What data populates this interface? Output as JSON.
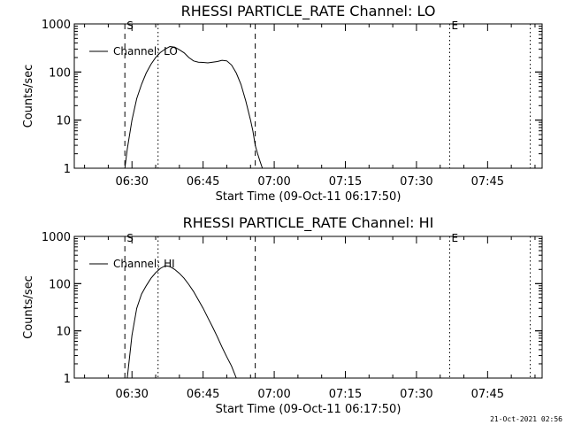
{
  "footer": {
    "timestamp": "21-Oct-2021 02:56"
  },
  "chart_data": [
    {
      "type": "line",
      "title": "RHESSI PARTICLE_RATE Channel: LO",
      "xlabel": "Start Time (09-Oct-11 06:17:50)",
      "ylabel": "Counts/sec",
      "y_scale": "log",
      "ylim": [
        1,
        1000
      ],
      "xlim": [
        "06:17:50",
        "07:56:30"
      ],
      "x_ticks": [
        "06:30",
        "06:45",
        "07:00",
        "07:15",
        "07:30",
        "07:45"
      ],
      "y_ticks": [
        "1",
        "10",
        "100",
        "1000"
      ],
      "legend": {
        "position": "top-left",
        "entries": [
          "Channel: LO"
        ]
      },
      "vlines": [
        {
          "x": "06:28:30",
          "style": "dashed",
          "label": "S"
        },
        {
          "x": "06:35:30",
          "style": "dotted",
          "label": ""
        },
        {
          "x": "06:56:00",
          "style": "dashed",
          "label": ""
        },
        {
          "x": "07:37:00",
          "style": "dotted",
          "label": "E"
        },
        {
          "x": "07:54:00",
          "style": "dotted",
          "label": ""
        }
      ],
      "series": [
        {
          "name": "Channel: LO",
          "x": [
            "06:28:30",
            "06:29:00",
            "06:30:00",
            "06:31:00",
            "06:32:00",
            "06:33:00",
            "06:34:00",
            "06:35:00",
            "06:36:00",
            "06:37:00",
            "06:38:00",
            "06:39:00",
            "06:40:00",
            "06:41:00",
            "06:42:00",
            "06:43:00",
            "06:44:00",
            "06:45:00",
            "06:46:00",
            "06:47:00",
            "06:48:00",
            "06:49:00",
            "06:50:00",
            "06:51:00",
            "06:52:00",
            "06:53:00",
            "06:54:00",
            "06:55:00",
            "06:55:30",
            "06:56:00",
            "06:56:30",
            "06:57:00",
            "06:57:30"
          ],
          "y": [
            1.0,
            2.5,
            10,
            28,
            55,
            95,
            145,
            200,
            255,
            300,
            340,
            330,
            290,
            250,
            200,
            170,
            160,
            158,
            155,
            160,
            165,
            175,
            170,
            140,
            95,
            55,
            25,
            10,
            6,
            3,
            2,
            1.4,
            1.0
          ]
        }
      ]
    },
    {
      "type": "line",
      "title": "RHESSI PARTICLE_RATE Channel: HI",
      "xlabel": "Start Time (09-Oct-11 06:17:50)",
      "ylabel": "Counts/sec",
      "y_scale": "log",
      "ylim": [
        1,
        1000
      ],
      "xlim": [
        "06:17:50",
        "07:56:30"
      ],
      "x_ticks": [
        "06:30",
        "06:45",
        "07:00",
        "07:15",
        "07:30",
        "07:45"
      ],
      "y_ticks": [
        "1",
        "10",
        "100",
        "1000"
      ],
      "legend": {
        "position": "top-left",
        "entries": [
          "Channel: HI"
        ]
      },
      "vlines": [
        {
          "x": "06:28:30",
          "style": "dashed",
          "label": "S"
        },
        {
          "x": "06:35:30",
          "style": "dotted",
          "label": ""
        },
        {
          "x": "06:56:00",
          "style": "dashed",
          "label": ""
        },
        {
          "x": "07:37:00",
          "style": "dotted",
          "label": "E"
        },
        {
          "x": "07:54:00",
          "style": "dotted",
          "label": ""
        }
      ],
      "series": [
        {
          "name": "Channel: HI",
          "x": [
            "06:29:00",
            "06:30:00",
            "06:31:00",
            "06:32:00",
            "06:33:00",
            "06:34:00",
            "06:35:00",
            "06:36:00",
            "06:37:00",
            "06:38:00",
            "06:39:00",
            "06:40:00",
            "06:41:00",
            "06:42:00",
            "06:43:00",
            "06:44:00",
            "06:45:00",
            "06:46:00",
            "06:47:00",
            "06:48:00",
            "06:49:00",
            "06:50:00",
            "06:51:00",
            "06:52:00"
          ],
          "y": [
            1.0,
            8,
            30,
            60,
            90,
            130,
            170,
            210,
            240,
            230,
            200,
            165,
            130,
            95,
            68,
            45,
            30,
            19,
            12,
            7.5,
            4.5,
            2.8,
            1.8,
            1.0
          ]
        }
      ]
    }
  ]
}
